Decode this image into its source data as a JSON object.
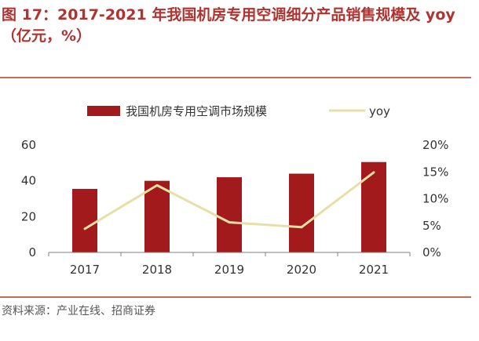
{
  "title": "图 17：2017-2021 年我国机房专用空调细分产品销售规模及 yoy（亿元，%）",
  "source": "资料来源：产业在线、招商证券",
  "colors": {
    "bar": "#a31a1c",
    "line": "#e8dfa6",
    "title": "#b0332f",
    "axis": "#7f7f7f",
    "text": "#333333"
  },
  "chart_data": {
    "type": "bar",
    "categories": [
      "2017",
      "2018",
      "2019",
      "2020",
      "2021"
    ],
    "series": [
      {
        "name": "我国机房专用空调市场规模",
        "type": "bar",
        "axis": "left",
        "values": [
          35.5,
          40,
          42,
          44,
          50.5
        ]
      },
      {
        "name": "yoy",
        "type": "line",
        "axis": "right",
        "values": [
          4.4,
          12.5,
          5.6,
          4.7,
          14.9
        ]
      }
    ],
    "y_left": {
      "ylim": [
        0,
        60
      ],
      "ticks": [
        0,
        20,
        40,
        60
      ],
      "tick_labels": [
        "0",
        "20",
        "40",
        "60"
      ]
    },
    "y_right": {
      "ylim": [
        0,
        20
      ],
      "ticks": [
        0,
        5,
        10,
        15,
        20
      ],
      "tick_labels": [
        "0%",
        "5%",
        "10%",
        "15%",
        "20%"
      ]
    },
    "grid": false,
    "legend": "top-center"
  }
}
